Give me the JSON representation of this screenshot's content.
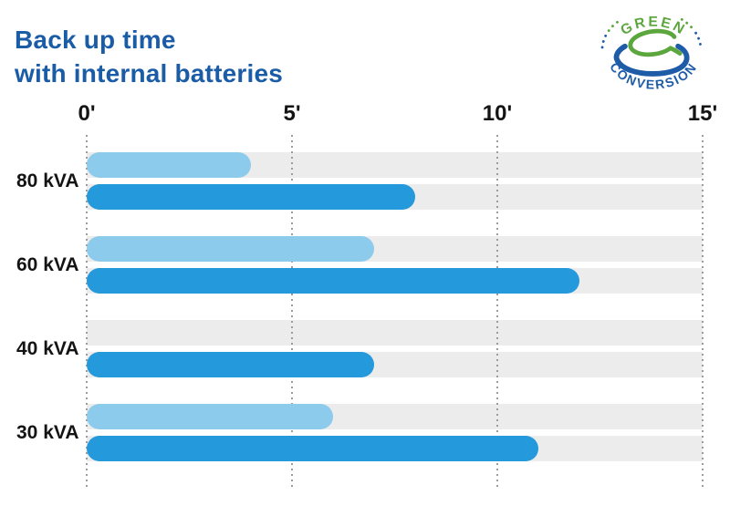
{
  "title": {
    "line1": "Back up time",
    "line2": "with internal batteries"
  },
  "logo": {
    "arc_top": "GREEN",
    "arc_bottom": "CONVERSION"
  },
  "colors": {
    "title_text": "#1A5CA6",
    "axis_text": "#141414",
    "bar_light": "#8DCBEC",
    "bar_dark": "#2499DB",
    "track": "#ECECEC",
    "gridline": "#9C9C9C",
    "logo_green": "#5CA63E",
    "logo_blue": "#1E5CA8"
  },
  "chart_data": {
    "type": "bar",
    "orientation": "horizontal",
    "title": "Back up time with internal batteries",
    "unit": "minutes",
    "categories": [
      "80 kVA",
      "60 kVA",
      "40 kVA",
      "30 kVA"
    ],
    "series": [
      {
        "name": "light-blue-bar",
        "color": "#8DCBEC",
        "values": [
          4,
          7,
          null,
          6
        ]
      },
      {
        "name": "dark-blue-bar",
        "color": "#2499DB",
        "values": [
          8,
          12,
          7,
          11
        ]
      }
    ],
    "x_ticks": [
      {
        "label": "0'",
        "value": 0
      },
      {
        "label": "5'",
        "value": 5
      },
      {
        "label": "10'",
        "value": 10
      },
      {
        "label": "15'",
        "value": 15
      }
    ],
    "xlim": [
      0,
      15
    ],
    "grid": "vertical-dotted",
    "legend": "none"
  }
}
